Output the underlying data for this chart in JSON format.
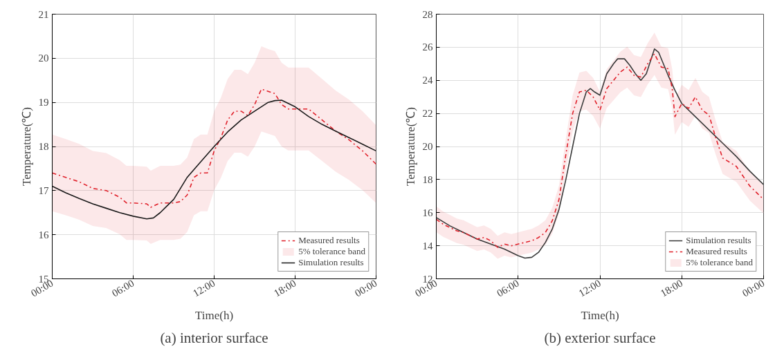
{
  "chart_data": [
    {
      "type": "line",
      "xlabel": "Time(h)",
      "ylabel": "Temperature(℃)",
      "annotations": [
        "(a) interior surface",
        "5% tolerance band"
      ],
      "xlim": [
        0,
        24
      ],
      "xticks": [
        {
          "value": 0,
          "label": "00:00"
        },
        {
          "value": 6,
          "label": "06:00"
        },
        {
          "value": 12,
          "label": "12:00"
        },
        {
          "value": 18,
          "label": "18:00"
        },
        {
          "value": 24,
          "label": "00:00"
        }
      ],
      "ylim": [
        15,
        21
      ],
      "yticks": [
        15,
        16,
        17,
        18,
        19,
        20,
        21
      ],
      "grid": true,
      "legend": "bottom right",
      "series": [
        {
          "name": "Measured results",
          "color": "#e0202a",
          "line_style": "dashdot",
          "x": [
            0,
            1,
            2,
            3,
            4,
            5,
            5.5,
            6,
            7,
            7.3,
            8,
            9,
            9.5,
            10,
            10.5,
            11,
            11.5,
            12,
            12.5,
            13,
            13.5,
            14,
            14.5,
            15,
            15.5,
            16,
            16.5,
            17,
            17.5,
            18,
            19,
            20,
            21,
            22,
            23,
            24
          ],
          "values": [
            17.4,
            17.3,
            17.2,
            17.05,
            17.0,
            16.85,
            16.72,
            16.72,
            16.7,
            16.62,
            16.72,
            16.72,
            16.75,
            16.9,
            17.3,
            17.4,
            17.4,
            17.9,
            18.2,
            18.6,
            18.8,
            18.8,
            18.7,
            18.95,
            19.3,
            19.25,
            19.2,
            18.95,
            18.85,
            18.85,
            18.85,
            18.6,
            18.35,
            18.15,
            17.9,
            17.6
          ],
          "lower": [
            16.53,
            16.44,
            16.34,
            16.2,
            16.15,
            16.01,
            15.88,
            15.88,
            15.87,
            15.79,
            15.88,
            15.88,
            15.91,
            16.06,
            16.44,
            16.53,
            16.53,
            17.01,
            17.29,
            17.67,
            17.86,
            17.86,
            17.77,
            18.0,
            18.34,
            18.29,
            18.24,
            18.0,
            17.91,
            17.91,
            17.91,
            17.67,
            17.43,
            17.24,
            17.01,
            16.72
          ],
          "upper": [
            18.27,
            18.17,
            18.06,
            17.9,
            17.85,
            17.69,
            17.56,
            17.56,
            17.54,
            17.45,
            17.56,
            17.56,
            17.59,
            17.75,
            18.17,
            18.27,
            18.27,
            18.8,
            19.11,
            19.53,
            19.74,
            19.74,
            19.64,
            19.9,
            20.27,
            20.21,
            20.16,
            19.9,
            19.79,
            19.79,
            19.79,
            19.53,
            19.27,
            19.06,
            18.8,
            18.48
          ]
        },
        {
          "name": "Simulation results",
          "color": "#1a1a1a",
          "line_style": "solid",
          "x": [
            0,
            1,
            2,
            3,
            4,
            5,
            6,
            7,
            7.5,
            8,
            8.5,
            9,
            10,
            11,
            12,
            13,
            14,
            15,
            16,
            16.5,
            17,
            18,
            19,
            20,
            21,
            22,
            23,
            24
          ],
          "values": [
            17.1,
            16.95,
            16.82,
            16.7,
            16.6,
            16.5,
            16.42,
            16.36,
            16.38,
            16.5,
            16.65,
            16.8,
            17.3,
            17.65,
            18.0,
            18.33,
            18.6,
            18.8,
            19.0,
            19.04,
            19.05,
            18.9,
            18.68,
            18.5,
            18.35,
            18.2,
            18.05,
            17.9
          ]
        }
      ]
    },
    {
      "type": "line",
      "xlabel": "Time(h)",
      "ylabel": "Temperature(℃)",
      "annotations": [
        "(b) exterior surface",
        "5% tolerance band"
      ],
      "xlim": [
        0,
        24
      ],
      "xticks": [
        {
          "value": 0,
          "label": "00:00"
        },
        {
          "value": 6,
          "label": "06:00"
        },
        {
          "value": 12,
          "label": "12:00"
        },
        {
          "value": 18,
          "label": "18:00"
        },
        {
          "value": 24,
          "label": "00:00"
        }
      ],
      "ylim": [
        12,
        28
      ],
      "yticks": [
        12,
        14,
        16,
        18,
        20,
        22,
        24,
        26,
        28
      ],
      "grid": true,
      "legend": "bottom right",
      "series": [
        {
          "name": "Simulation results",
          "color": "#3a3a3a",
          "line_style": "solid",
          "x": [
            0,
            1,
            2,
            3,
            4,
            5,
            6,
            6.5,
            7,
            7.5,
            8,
            8.5,
            9,
            9.5,
            10,
            10.5,
            11,
            11.3,
            11.6,
            12,
            12.5,
            13,
            13.3,
            13.8,
            14.2,
            14.6,
            15,
            15.4,
            16,
            16.3,
            17,
            17.5,
            18,
            19,
            20,
            21,
            22,
            23,
            24
          ],
          "values": [
            15.7,
            15.2,
            14.8,
            14.4,
            14.1,
            13.8,
            13.4,
            13.25,
            13.3,
            13.6,
            14.2,
            15.0,
            16.2,
            18.0,
            20.0,
            22.0,
            23.3,
            23.5,
            23.3,
            23.1,
            24.4,
            25.0,
            25.3,
            25.3,
            24.9,
            24.4,
            24.0,
            24.4,
            25.9,
            25.7,
            24.3,
            23.4,
            22.6,
            21.8,
            21.0,
            20.2,
            19.4,
            18.5,
            17.7
          ]
        },
        {
          "name": "Measured results",
          "color": "#e0202a",
          "line_style": "dashdot",
          "x": [
            0,
            0.5,
            1,
            1.5,
            2,
            2.5,
            3,
            3.5,
            4,
            4.5,
            5,
            5.5,
            6,
            7,
            7.5,
            8,
            8.5,
            9,
            9.5,
            10,
            10.5,
            11,
            11.5,
            12,
            12.5,
            13,
            13.5,
            14,
            14.5,
            15,
            15.5,
            16,
            16.5,
            17,
            17.3,
            17.5,
            18,
            18.5,
            19,
            19.5,
            20,
            20.5,
            21,
            22,
            23,
            24
          ],
          "values": [
            15.6,
            15.3,
            15.1,
            14.9,
            14.8,
            14.6,
            14.4,
            14.5,
            14.3,
            13.9,
            14.1,
            14.0,
            14.1,
            14.3,
            14.5,
            14.8,
            15.5,
            16.8,
            19.5,
            22.0,
            23.3,
            23.4,
            23.0,
            22.2,
            23.5,
            24.0,
            24.5,
            24.8,
            24.3,
            24.2,
            25.0,
            25.6,
            24.8,
            24.7,
            23.5,
            21.8,
            22.6,
            22.3,
            23.0,
            22.2,
            21.9,
            20.5,
            19.3,
            18.8,
            17.6,
            16.8
          ],
          "lower": [
            14.82,
            14.54,
            14.35,
            14.16,
            14.06,
            13.87,
            13.68,
            13.78,
            13.59,
            13.21,
            13.4,
            13.3,
            13.4,
            13.59,
            13.78,
            14.06,
            14.73,
            15.96,
            18.53,
            20.9,
            22.14,
            22.23,
            21.85,
            21.09,
            22.33,
            22.8,
            23.28,
            23.56,
            23.09,
            22.99,
            23.75,
            24.32,
            23.56,
            23.47,
            22.33,
            20.71,
            21.47,
            21.19,
            21.85,
            21.09,
            20.81,
            19.48,
            18.34,
            17.86,
            16.72,
            15.96
          ],
          "upper": [
            16.38,
            16.07,
            15.86,
            15.65,
            15.54,
            15.33,
            15.12,
            15.23,
            15.02,
            14.6,
            14.81,
            14.7,
            14.81,
            15.02,
            15.23,
            15.54,
            16.28,
            17.64,
            20.48,
            23.1,
            24.47,
            24.57,
            24.15,
            23.31,
            24.68,
            25.2,
            25.73,
            26.04,
            25.52,
            25.41,
            26.25,
            26.88,
            26.04,
            25.94,
            24.68,
            22.89,
            23.73,
            23.42,
            24.15,
            23.31,
            23.0,
            21.53,
            20.27,
            19.74,
            18.48,
            17.64
          ]
        }
      ]
    }
  ]
}
